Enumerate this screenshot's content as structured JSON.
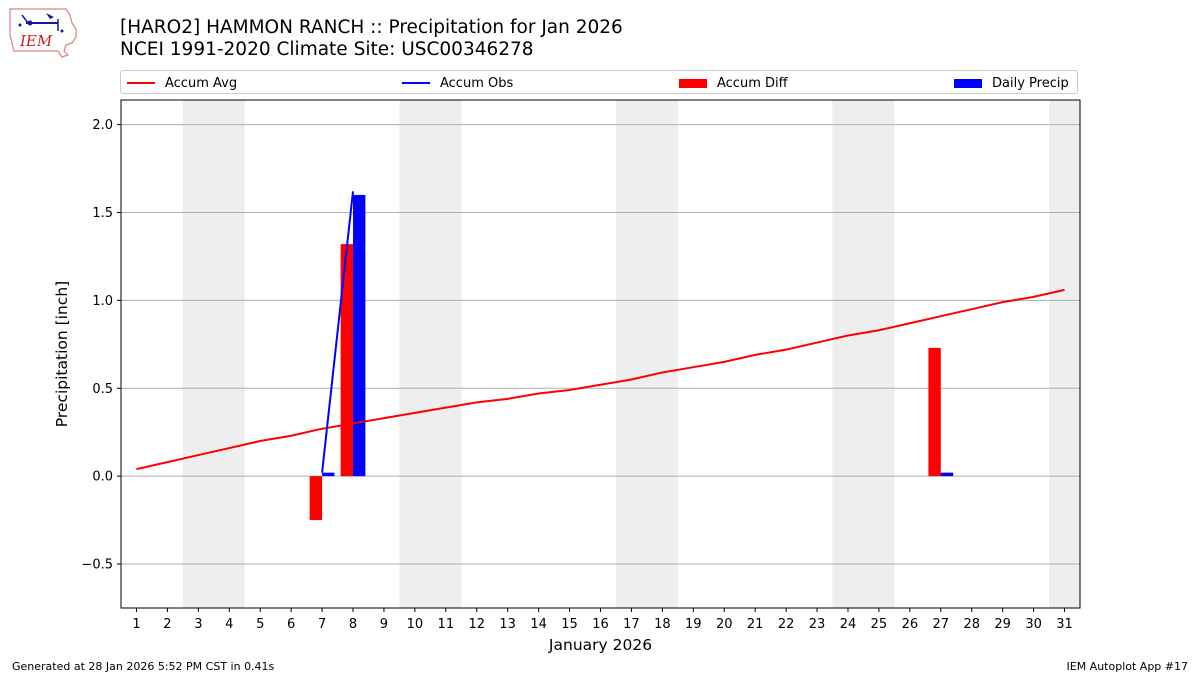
{
  "title_line1": "[HARO2] HAMMON RANCH :: Precipitation for Jan 2026",
  "title_line2": "NCEI 1991-2020 Climate Site: USC00346278",
  "logo_text": "IEM",
  "legend": {
    "accum_avg": "Accum Avg",
    "accum_obs": "Accum Obs",
    "accum_diff": "Accum Diff",
    "daily_precip": "Daily Precip"
  },
  "footer": {
    "left": "Generated at 28 Jan 2026 5:52 PM CST in 0.41s",
    "right": "IEM Autoplot App #17"
  },
  "colors": {
    "avg": "#ff0000",
    "obs": "#0000ff",
    "diff": "#ff0000",
    "daily": "#0000ff",
    "weekend": "#eeeeee",
    "grid": "#b0b0b0"
  },
  "chart_data": {
    "type": "bar",
    "title": "[HARO2] HAMMON RANCH :: Precipitation for Jan 2026",
    "xlabel": "January 2026",
    "ylabel": "Precipitation [inch]",
    "xlim": [
      0.5,
      31.5
    ],
    "ylim": [
      -0.75,
      2.14
    ],
    "yticks": [
      -0.5,
      0.0,
      0.5,
      1.0,
      1.5,
      2.0
    ],
    "ytick_labels": [
      "−0.5",
      "0.0",
      "0.5",
      "1.0",
      "1.5",
      "2.0"
    ],
    "days": [
      1,
      2,
      3,
      4,
      5,
      6,
      7,
      8,
      9,
      10,
      11,
      12,
      13,
      14,
      15,
      16,
      17,
      18,
      19,
      20,
      21,
      22,
      23,
      24,
      25,
      26,
      27,
      28,
      29,
      30,
      31
    ],
    "weekend_days": [
      3,
      4,
      10,
      11,
      17,
      18,
      24,
      25,
      31
    ],
    "grid": "horizontal",
    "legend_position": "top",
    "series": [
      {
        "name": "Accum Avg",
        "kind": "line",
        "x": [
          1,
          2,
          3,
          4,
          5,
          6,
          7,
          8,
          9,
          10,
          11,
          12,
          13,
          14,
          15,
          16,
          17,
          18,
          19,
          20,
          21,
          22,
          23,
          24,
          25,
          26,
          27,
          28,
          29,
          30,
          31
        ],
        "values": [
          0.04,
          0.08,
          0.12,
          0.16,
          0.2,
          0.23,
          0.27,
          0.3,
          0.33,
          0.36,
          0.39,
          0.42,
          0.44,
          0.47,
          0.49,
          0.52,
          0.55,
          0.59,
          0.62,
          0.65,
          0.69,
          0.72,
          0.76,
          0.8,
          0.83,
          0.87,
          0.91,
          0.95,
          0.99,
          1.02,
          1.06
        ]
      },
      {
        "name": "Accum Obs",
        "kind": "line",
        "x": [
          7,
          8
        ],
        "values": [
          0.02,
          1.62
        ]
      },
      {
        "name": "Accum Diff",
        "kind": "bar",
        "x": [
          7,
          8,
          27
        ],
        "values": [
          -0.25,
          1.32,
          0.73
        ]
      },
      {
        "name": "Daily Precip",
        "kind": "bar",
        "x": [
          7,
          8,
          27
        ],
        "values": [
          0.02,
          1.6,
          0.02
        ]
      }
    ]
  }
}
